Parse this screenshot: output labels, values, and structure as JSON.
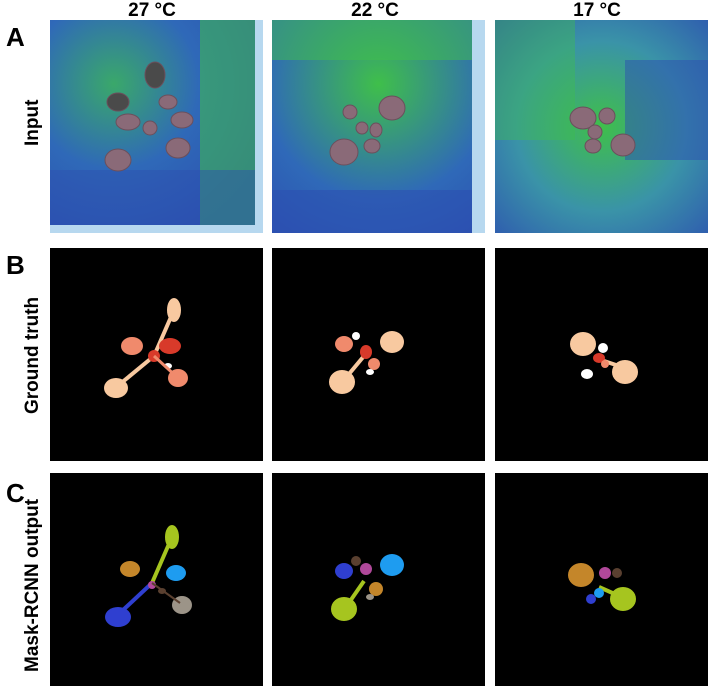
{
  "columns": [
    "27 °C",
    "22 °C",
    "17 °C"
  ],
  "rows": [
    {
      "letter": "A",
      "label": "Input"
    },
    {
      "letter": "B",
      "label": "Ground truth"
    },
    {
      "letter": "C",
      "label": "Mask-RCNN output"
    }
  ],
  "colors": {
    "input_bg_blue": "#2f69b8",
    "input_bg_green": "#3fbf4a",
    "leaf_purple_brown": "#8a6a78",
    "mask_background": "#000000",
    "gt_peach": "#f8c9a0",
    "gt_salmon": "#f08a6c",
    "gt_red": "#d83a2a",
    "mrcnn_blue": "#2f3fd0",
    "mrcnn_lime": "#a6c51f",
    "mrcnn_sky": "#1e9cf0",
    "mrcnn_gold": "#c4862a",
    "mrcnn_magenta": "#b0489a",
    "mrcnn_grey": "#9c9488"
  }
}
